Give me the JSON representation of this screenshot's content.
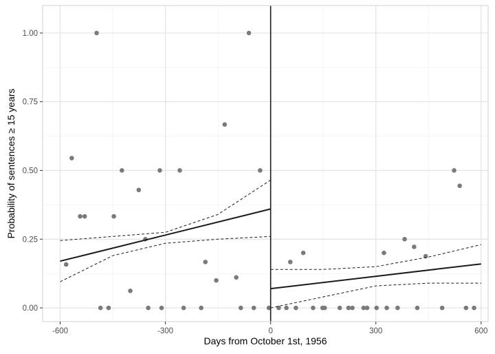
{
  "colors": {
    "panel_border": "#d9d9d9",
    "grid_major": "#e3e3e3",
    "grid_minor": "#f2f2f2",
    "point": "#7a7a7a",
    "line": "#1a1a1a",
    "tick_text": "#4d4d4d"
  },
  "chart_data": {
    "type": "scatter",
    "title": "",
    "xlabel": "Days from October 1st, 1956",
    "ylabel": "Probability of sentences ≥ 15 years",
    "xlim": [
      -650,
      620
    ],
    "ylim": [
      -0.05,
      1.1
    ],
    "x_ticks": [
      -600,
      -300,
      0,
      300,
      600
    ],
    "x_tick_labels": [
      "-600",
      "-300",
      "0",
      "300",
      "600"
    ],
    "y_ticks": [
      0,
      0.25,
      0.5,
      0.75,
      1
    ],
    "y_tick_labels": [
      "0.00",
      "0.25",
      "0.50",
      "0.75",
      "1.00"
    ],
    "grid": true,
    "cutoff_x": 0,
    "points": [
      [
        -583,
        0.158
      ],
      [
        -567,
        0.545
      ],
      [
        -543,
        0.333
      ],
      [
        -530,
        0.333
      ],
      [
        -496,
        1.0
      ],
      [
        -485,
        0.0
      ],
      [
        -462,
        0.0
      ],
      [
        -447,
        0.333
      ],
      [
        -424,
        0.5
      ],
      [
        -400,
        0.062
      ],
      [
        -376,
        0.429
      ],
      [
        -357,
        0.25
      ],
      [
        -349,
        0.0
      ],
      [
        -316,
        0.5
      ],
      [
        -311,
        0.0
      ],
      [
        -259,
        0.5
      ],
      [
        -248,
        0.0
      ],
      [
        -198,
        0.0
      ],
      [
        -186,
        0.167
      ],
      [
        -155,
        0.1
      ],
      [
        -131,
        0.667
      ],
      [
        -98,
        0.111
      ],
      [
        -85,
        0.0
      ],
      [
        -62,
        1.0
      ],
      [
        -48,
        0.0
      ],
      [
        -30,
        0.5
      ],
      [
        -5,
        0.0
      ],
      [
        23,
        0.0
      ],
      [
        45,
        0.0
      ],
      [
        56,
        0.167
      ],
      [
        72,
        0.0
      ],
      [
        93,
        0.2
      ],
      [
        121,
        0.0
      ],
      [
        148,
        0.0
      ],
      [
        154,
        0.0
      ],
      [
        197,
        0.0
      ],
      [
        222,
        0.0
      ],
      [
        233,
        0.0
      ],
      [
        265,
        0.0
      ],
      [
        275,
        0.0
      ],
      [
        302,
        0.0
      ],
      [
        323,
        0.2
      ],
      [
        331,
        0.0
      ],
      [
        362,
        0.0
      ],
      [
        382,
        0.25
      ],
      [
        409,
        0.222
      ],
      [
        418,
        0.0
      ],
      [
        442,
        0.188
      ],
      [
        489,
        0.0
      ],
      [
        523,
        0.5
      ],
      [
        539,
        0.444
      ],
      [
        557,
        0.0
      ],
      [
        580,
        0.0
      ]
    ],
    "fit_left": {
      "line": [
        [
          -600,
          0.17
        ],
        [
          0,
          0.36
        ]
      ],
      "upper": [
        [
          -600,
          0.245
        ],
        [
          -300,
          0.275
        ],
        [
          -150,
          0.34
        ],
        [
          0,
          0.465
        ]
      ],
      "lower": [
        [
          -600,
          0.095
        ],
        [
          -450,
          0.19
        ],
        [
          -300,
          0.235
        ],
        [
          -150,
          0.25
        ],
        [
          0,
          0.26
        ]
      ]
    },
    "fit_right": {
      "line": [
        [
          0,
          0.07
        ],
        [
          600,
          0.16
        ]
      ],
      "upper": [
        [
          0,
          0.14
        ],
        [
          150,
          0.14
        ],
        [
          300,
          0.15
        ],
        [
          450,
          0.185
        ],
        [
          600,
          0.23
        ]
      ],
      "lower": [
        [
          0,
          0.0
        ],
        [
          150,
          0.04
        ],
        [
          300,
          0.08
        ],
        [
          450,
          0.09
        ],
        [
          600,
          0.09
        ]
      ]
    }
  }
}
